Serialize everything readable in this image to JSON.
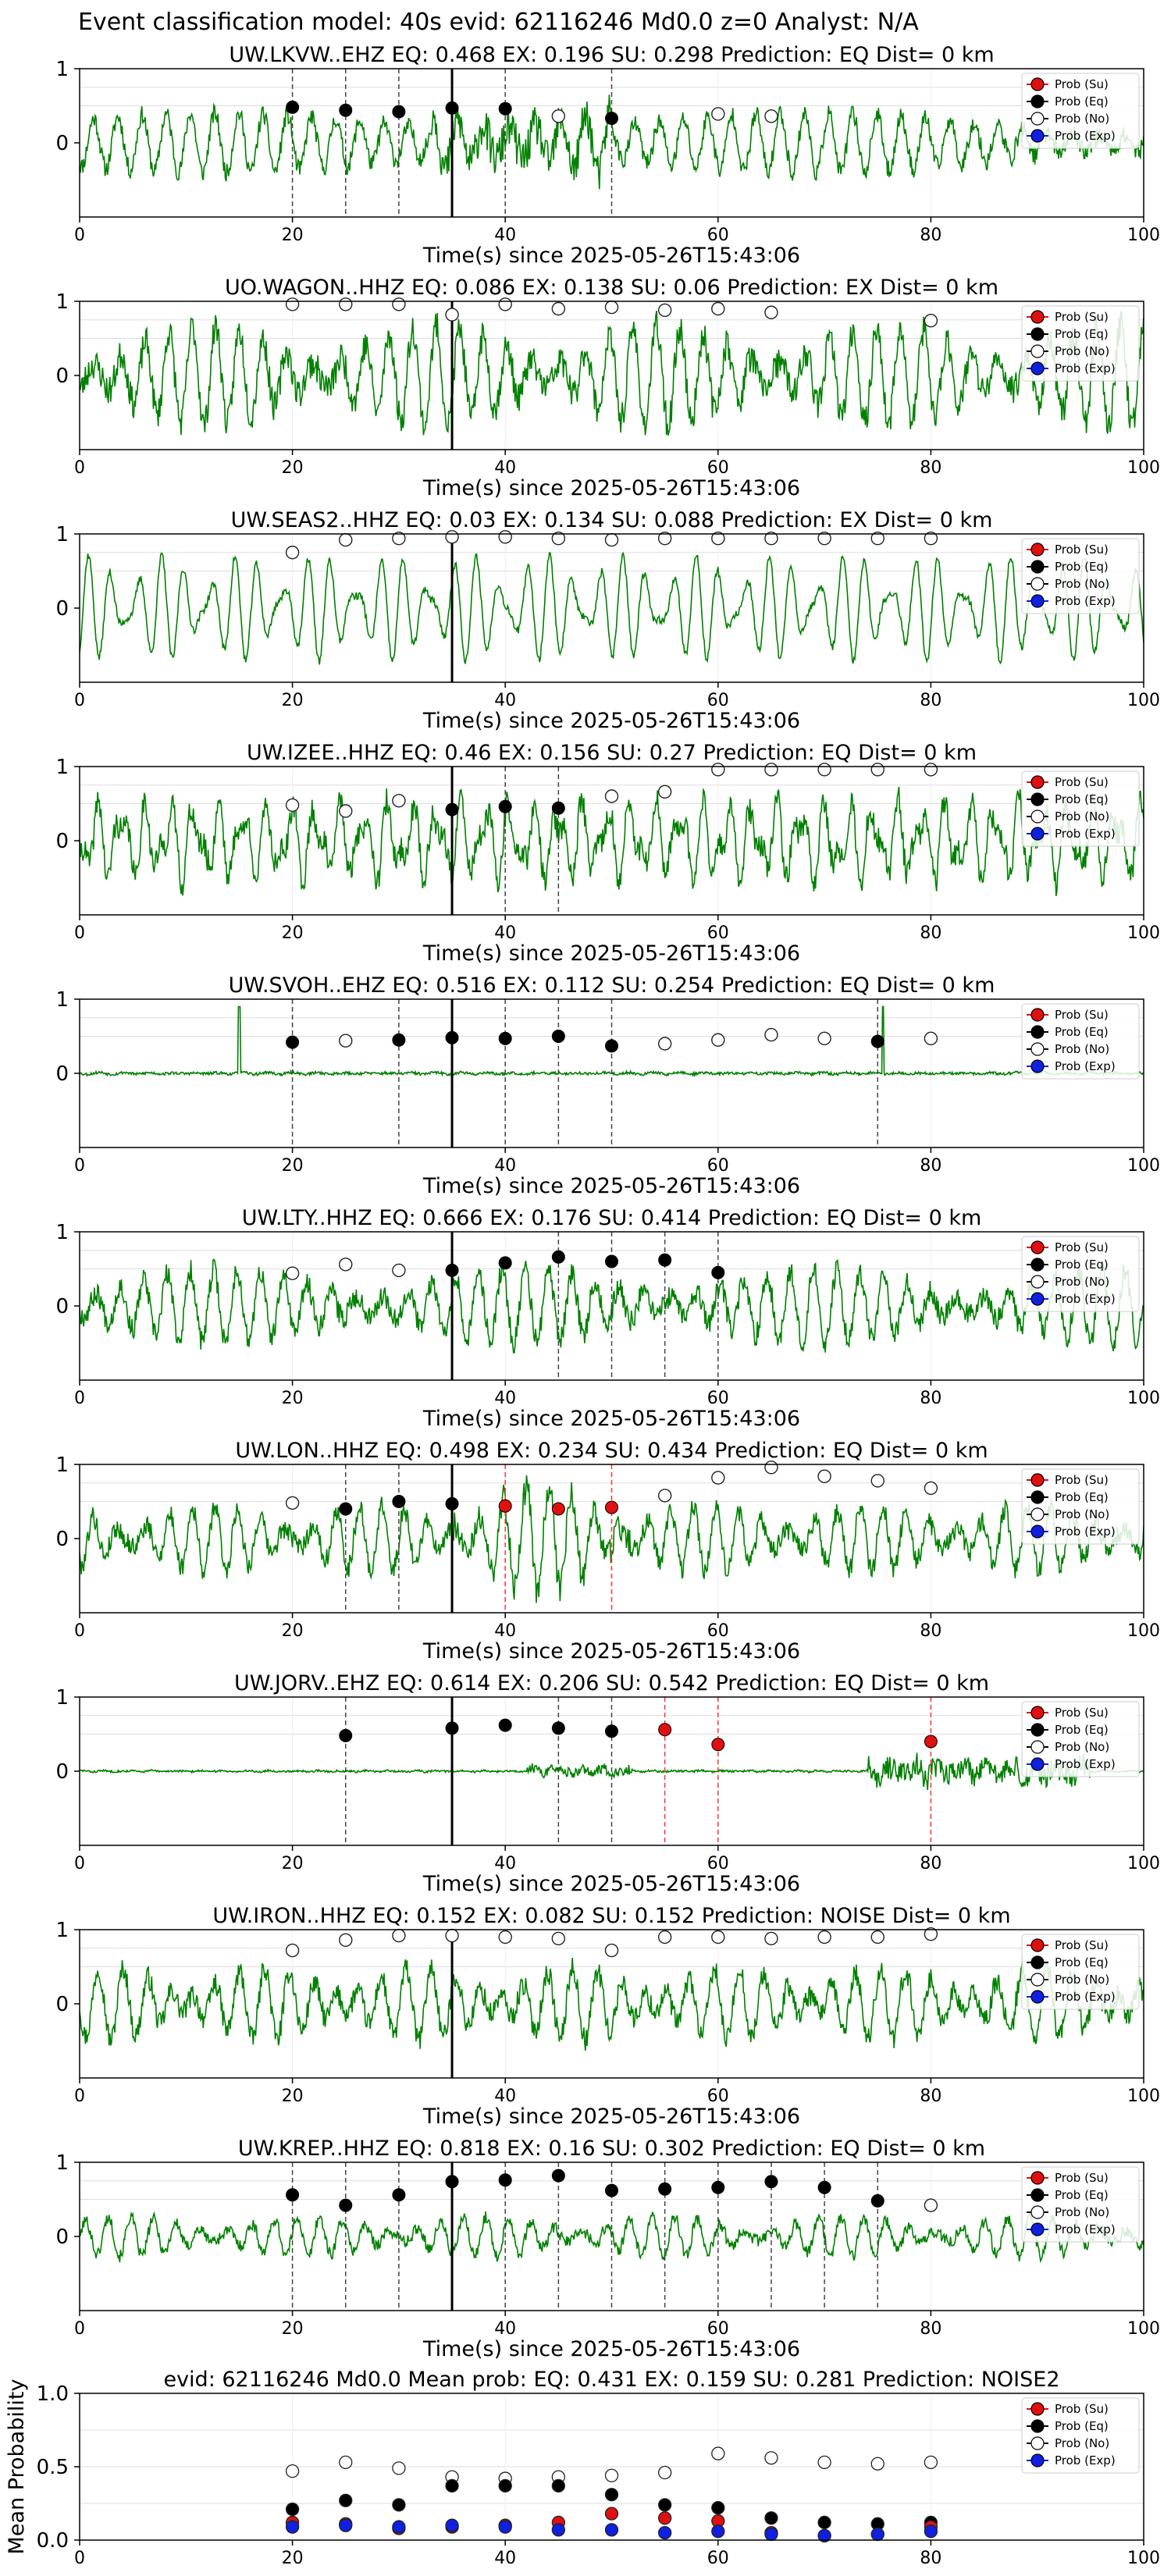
{
  "suptitle": "Event classification model: 40s evid: 62116246 Md0.0 z=0 Analyst: N/A",
  "legend": {
    "entries": [
      {
        "label": "Prob (Su)",
        "color": "#e01010",
        "filled": true
      },
      {
        "label": "Prob (Eq)",
        "color": "#000000",
        "filled": true
      },
      {
        "label": "Prob (No)",
        "color": "#ffffff",
        "filled": false
      },
      {
        "label": "Prob (Exp)",
        "color": "#1020e0",
        "filled": true
      }
    ]
  },
  "colors": {
    "waveform": "#008000",
    "su": "#e01010",
    "eq": "#000000",
    "exp": "#1020e0",
    "grid": "#dddddd",
    "red_line": "#ff3333"
  },
  "chart_data": [
    {
      "type": "line",
      "station": "UW.LKVW..EHZ",
      "title": "UW.LKVW..EHZ   EQ: 0.468   EX: 0.196   SU: 0.298   Prediction: EQ    Dist= 0 km",
      "xlabel": "Time(s) since 2025-05-26T15:43:06",
      "xlim": [
        0,
        100
      ],
      "ylim": [
        -1,
        1
      ],
      "xticks": [
        "0",
        "20",
        "40",
        "60",
        "80",
        "100"
      ],
      "yticks": [
        "1",
        "0"
      ],
      "grid": true,
      "legend_position": "upper right",
      "pick_line": 35,
      "amp": 0.45,
      "seed": 11,
      "dashed_lines": [
        20,
        25,
        30,
        40,
        50
      ],
      "red_lines": [],
      "eq_points": [
        [
          20,
          0.48
        ],
        [
          25,
          0.44
        ],
        [
          30,
          0.42
        ],
        [
          35,
          0.47
        ],
        [
          40,
          0.46
        ],
        [
          50,
          0.33
        ]
      ],
      "su_points": [],
      "no_points": [
        [
          45,
          0.36
        ],
        [
          60,
          0.39
        ],
        [
          65,
          0.36
        ]
      ]
    },
    {
      "type": "line",
      "station": "UO.WAGON..HHZ",
      "title": "UO.WAGON..HHZ   EQ: 0.086  EX: 0.138  SU: 0.06   Prediction: EX    Dist= 0 km",
      "xlabel": "Time(s) since 2025-05-26T15:43:06",
      "xlim": [
        0,
        100
      ],
      "ylim": [
        -1,
        1
      ],
      "xticks": [
        "0",
        "20",
        "40",
        "60",
        "80",
        "100"
      ],
      "yticks": [
        "1",
        "0"
      ],
      "grid": true,
      "legend_position": "upper right",
      "pick_line": 35,
      "amp": 0.75,
      "seed": 23,
      "dashed_lines": [],
      "red_lines": [],
      "eq_points": [],
      "su_points": [],
      "no_points": [
        [
          20,
          0.96
        ],
        [
          25,
          0.96
        ],
        [
          30,
          0.96
        ],
        [
          35,
          0.82
        ],
        [
          40,
          0.96
        ],
        [
          45,
          0.9
        ],
        [
          50,
          0.92
        ],
        [
          55,
          0.88
        ],
        [
          60,
          0.9
        ],
        [
          65,
          0.85
        ],
        [
          80,
          0.74
        ]
      ]
    },
    {
      "type": "line",
      "station": "UW.SEAS2..HHZ",
      "title": "UW.SEAS2..HHZ   EQ: 0.03   EX: 0.134   SU: 0.088   Prediction: EX    Dist= 0 km",
      "xlabel": "Time(s) since 2025-05-26T15:43:06",
      "xlim": [
        0,
        100
      ],
      "ylim": [
        -1,
        1
      ],
      "xticks": [
        "0",
        "20",
        "40",
        "60",
        "80",
        "100"
      ],
      "yticks": [
        "1",
        "0"
      ],
      "grid": true,
      "legend_position": "upper right",
      "pick_line": 35,
      "amp": 0.8,
      "seed": 37,
      "dashed_lines": [],
      "red_lines": [],
      "eq_points": [],
      "su_points": [],
      "no_points": [
        [
          20,
          0.75
        ],
        [
          25,
          0.92
        ],
        [
          30,
          0.94
        ],
        [
          35,
          0.96
        ],
        [
          40,
          0.96
        ],
        [
          45,
          0.94
        ],
        [
          50,
          0.92
        ],
        [
          55,
          0.94
        ],
        [
          60,
          0.94
        ],
        [
          65,
          0.94
        ],
        [
          70,
          0.94
        ],
        [
          75,
          0.94
        ],
        [
          80,
          0.94
        ]
      ]
    },
    {
      "type": "line",
      "station": "UW.IZEE..HHZ",
      "title": "UW.IZEE..HHZ   EQ: 0.46   EX: 0.156   SU: 0.27   Prediction: EQ    Dist= 0 km",
      "xlabel": "Time(s) since 2025-05-26T15:43:06",
      "xlim": [
        0,
        100
      ],
      "ylim": [
        -1,
        1
      ],
      "xticks": [
        "0",
        "20",
        "40",
        "60",
        "80",
        "100"
      ],
      "yticks": [
        "1",
        "0"
      ],
      "grid": true,
      "legend_position": "upper right",
      "pick_line": 35,
      "amp": 0.65,
      "seed": 41,
      "dashed_lines": [
        40,
        45
      ],
      "red_lines": [],
      "eq_points": [
        [
          35,
          0.42
        ],
        [
          40,
          0.46
        ],
        [
          45,
          0.44
        ]
      ],
      "su_points": [],
      "no_points": [
        [
          20,
          0.48
        ],
        [
          25,
          0.4
        ],
        [
          30,
          0.54
        ],
        [
          50,
          0.6
        ],
        [
          55,
          0.66
        ],
        [
          60,
          0.96
        ],
        [
          65,
          0.96
        ],
        [
          70,
          0.96
        ],
        [
          75,
          0.96
        ],
        [
          80,
          0.96
        ]
      ]
    },
    {
      "type": "line",
      "station": "UW.SVOH..EHZ",
      "title": "UW.SVOH..EHZ   EQ: 0.516  EX: 0.112  SU: 0.254   Prediction: EQ    Dist= 0 km",
      "xlabel": "Time(s) since 2025-05-26T15:43:06",
      "xlim": [
        0,
        100
      ],
      "ylim": [
        -1,
        1
      ],
      "xticks": [
        "0",
        "20",
        "40",
        "60",
        "80",
        "100"
      ],
      "yticks": [
        "1",
        "0"
      ],
      "grid": true,
      "legend_position": "upper right",
      "pick_line": 35,
      "amp": 0.07,
      "seed": 53,
      "dashed_lines": [
        20,
        30,
        40,
        45,
        50,
        75
      ],
      "red_lines": [],
      "eq_points": [
        [
          20,
          0.42
        ],
        [
          30,
          0.45
        ],
        [
          35,
          0.48
        ],
        [
          40,
          0.47
        ],
        [
          45,
          0.5
        ],
        [
          50,
          0.37
        ],
        [
          75,
          0.43
        ]
      ],
      "su_points": [],
      "no_points": [
        [
          25,
          0.44
        ],
        [
          55,
          0.4
        ],
        [
          60,
          0.45
        ],
        [
          65,
          0.52
        ],
        [
          70,
          0.47
        ],
        [
          80,
          0.47
        ]
      ]
    },
    {
      "type": "line",
      "station": "UW.LTY..HHZ",
      "title": "UW.LTY..HHZ   EQ: 0.666  EX: 0.176  SU: 0.414   Prediction: EQ    Dist= 0 km",
      "xlabel": "Time(s) since 2025-05-26T15:43:06",
      "xlim": [
        0,
        100
      ],
      "ylim": [
        -1,
        1
      ],
      "xticks": [
        "0",
        "20",
        "40",
        "60",
        "80",
        "100"
      ],
      "yticks": [
        "1",
        "0"
      ],
      "grid": true,
      "legend_position": "upper right",
      "pick_line": 35,
      "amp": 0.55,
      "seed": 67,
      "dashed_lines": [
        45,
        50,
        55,
        60
      ],
      "red_lines": [],
      "eq_points": [
        [
          35,
          0.48
        ],
        [
          40,
          0.58
        ],
        [
          45,
          0.66
        ],
        [
          50,
          0.6
        ],
        [
          55,
          0.62
        ],
        [
          60,
          0.45
        ]
      ],
      "su_points": [],
      "no_points": [
        [
          20,
          0.44
        ],
        [
          25,
          0.56
        ],
        [
          30,
          0.48
        ]
      ]
    },
    {
      "type": "line",
      "station": "UW.LON..HHZ",
      "title": "UW.LON..HHZ   EQ: 0.498  EX: 0.234  SU: 0.434   Prediction: EQ    Dist= 0 km",
      "xlabel": "Time(s) since 2025-05-26T15:43:06",
      "xlim": [
        0,
        100
      ],
      "ylim": [
        -1,
        1
      ],
      "xticks": [
        "0",
        "20",
        "40",
        "60",
        "80",
        "100"
      ],
      "yticks": [
        "1",
        "0"
      ],
      "grid": true,
      "legend_position": "upper right",
      "pick_line": 35,
      "amp": 0.5,
      "seed": 79,
      "dashed_lines": [
        25,
        30
      ],
      "red_lines": [
        40,
        50
      ],
      "eq_points": [
        [
          25,
          0.4
        ],
        [
          30,
          0.5
        ],
        [
          35,
          0.47
        ]
      ],
      "su_points": [
        [
          40,
          0.44
        ],
        [
          45,
          0.4
        ],
        [
          50,
          0.42
        ]
      ],
      "no_points": [
        [
          20,
          0.48
        ],
        [
          55,
          0.58
        ],
        [
          60,
          0.82
        ],
        [
          65,
          0.96
        ],
        [
          70,
          0.84
        ],
        [
          75,
          0.78
        ],
        [
          80,
          0.68
        ]
      ]
    },
    {
      "type": "line",
      "station": "UW.JORV..EHZ",
      "title": "UW.JORV..EHZ   EQ: 0.614  EX: 0.206  SU: 0.542   Prediction: EQ    Dist= 0 km",
      "xlabel": "Time(s) since 2025-05-26T15:43:06",
      "xlim": [
        0,
        100
      ],
      "ylim": [
        -1,
        1
      ],
      "xticks": [
        "0",
        "20",
        "40",
        "60",
        "80",
        "100"
      ],
      "yticks": [
        "1",
        "0"
      ],
      "grid": true,
      "legend_position": "upper right",
      "pick_line": 35,
      "amp": 0.05,
      "seed": 83,
      "dashed_lines": [
        25,
        45,
        50
      ],
      "red_lines": [
        55,
        60,
        80
      ],
      "eq_points": [
        [
          25,
          0.48
        ],
        [
          35,
          0.58
        ],
        [
          40,
          0.62
        ],
        [
          45,
          0.58
        ],
        [
          50,
          0.54
        ]
      ],
      "su_points": [
        [
          55,
          0.56
        ],
        [
          60,
          0.36
        ],
        [
          80,
          0.4
        ]
      ],
      "no_points": []
    },
    {
      "type": "line",
      "station": "UW.IRON..HHZ",
      "title": "UW.IRON..HHZ   EQ: 0.152  EX: 0.082  SU: 0.152   Prediction: NOISE    Dist= 0 km",
      "xlabel": "Time(s) since 2025-05-26T15:43:06",
      "xlim": [
        0,
        100
      ],
      "ylim": [
        -1,
        1
      ],
      "xticks": [
        "0",
        "20",
        "40",
        "60",
        "80",
        "100"
      ],
      "yticks": [
        "1",
        "0"
      ],
      "grid": true,
      "legend_position": "upper right",
      "pick_line": 35,
      "amp": 0.55,
      "seed": 97,
      "dashed_lines": [],
      "red_lines": [],
      "eq_points": [],
      "su_points": [],
      "no_points": [
        [
          20,
          0.72
        ],
        [
          25,
          0.86
        ],
        [
          30,
          0.92
        ],
        [
          35,
          0.92
        ],
        [
          40,
          0.9
        ],
        [
          45,
          0.88
        ],
        [
          50,
          0.72
        ],
        [
          55,
          0.9
        ],
        [
          60,
          0.9
        ],
        [
          65,
          0.88
        ],
        [
          70,
          0.9
        ],
        [
          75,
          0.9
        ],
        [
          80,
          0.94
        ]
      ]
    },
    {
      "type": "line",
      "station": "UW.KREP..HHZ",
      "title": "UW.KREP..HHZ   EQ: 0.818  EX: 0.16  SU: 0.302   Prediction: EQ    Dist= 0 km",
      "xlabel": "Time(s) since 2025-05-26T15:43:06",
      "xlim": [
        0,
        100
      ],
      "ylim": [
        -1,
        1
      ],
      "xticks": [
        "0",
        "20",
        "40",
        "60",
        "80",
        "100"
      ],
      "yticks": [
        "1",
        "0"
      ],
      "grid": true,
      "legend_position": "upper right",
      "pick_line": 35,
      "amp": 0.3,
      "seed": 101,
      "dashed_lines": [
        20,
        25,
        30,
        40,
        45,
        50,
        55,
        60,
        65,
        70,
        75
      ],
      "red_lines": [],
      "eq_points": [
        [
          20,
          0.56
        ],
        [
          25,
          0.42
        ],
        [
          30,
          0.56
        ],
        [
          35,
          0.74
        ],
        [
          40,
          0.76
        ],
        [
          45,
          0.82
        ],
        [
          50,
          0.62
        ],
        [
          55,
          0.64
        ],
        [
          60,
          0.66
        ],
        [
          65,
          0.74
        ],
        [
          70,
          0.66
        ],
        [
          75,
          0.48
        ]
      ],
      "su_points": [],
      "no_points": [
        [
          80,
          0.42
        ]
      ]
    },
    {
      "type": "scatter",
      "title": "evid: 62116246  Md0.0   Mean prob:   EQ: 0.431  EX: 0.159  SU: 0.281   Prediction: NOISE2",
      "ylabel": "Mean Probability",
      "xlim": [
        0,
        100
      ],
      "ylim": [
        0,
        1
      ],
      "xticks": [
        "0",
        "20",
        "40",
        "60",
        "80",
        "100"
      ],
      "yticks": [
        "0.0",
        "0.5",
        "1.0"
      ],
      "grid": true,
      "legend_position": "upper right",
      "x": [
        20,
        25,
        30,
        35,
        40,
        45,
        50,
        55,
        60,
        65,
        70,
        75,
        80
      ],
      "series": [
        {
          "name": "Prob (No)",
          "values": [
            0.47,
            0.53,
            0.49,
            0.43,
            0.42,
            0.43,
            0.44,
            0.46,
            0.59,
            0.56,
            0.53,
            0.52,
            0.53
          ]
        },
        {
          "name": "Prob (Eq)",
          "values": [
            0.21,
            0.27,
            0.24,
            0.37,
            0.37,
            0.37,
            0.31,
            0.24,
            0.22,
            0.15,
            0.12,
            0.11,
            0.12
          ]
        },
        {
          "name": "Prob (Su)",
          "values": [
            0.12,
            0.11,
            0.08,
            0.09,
            0.1,
            0.12,
            0.18,
            0.15,
            0.13,
            0.05,
            0.03,
            0.04,
            0.09
          ]
        },
        {
          "name": "Prob (Exp)",
          "values": [
            0.09,
            0.1,
            0.09,
            0.1,
            0.09,
            0.07,
            0.07,
            0.05,
            0.06,
            0.04,
            0.03,
            0.04,
            0.06
          ]
        }
      ]
    }
  ]
}
